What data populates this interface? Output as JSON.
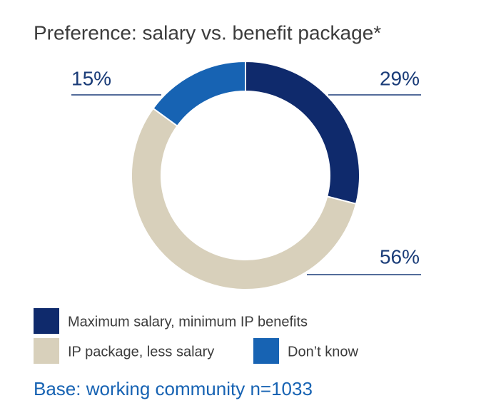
{
  "chart_data": {
    "type": "pie",
    "title": "Preference: salary vs. benefit package*",
    "categories": [
      "Maximum salary, minimum IP benefits",
      "IP package, less salary",
      "Don’t know"
    ],
    "values": [
      29,
      56,
      15
    ],
    "value_labels": [
      "29%",
      "56%",
      "15%"
    ],
    "colors": [
      "#0f2a6c",
      "#d8d0bb",
      "#1763b3"
    ],
    "footnote": "Base: working community n=1033"
  }
}
